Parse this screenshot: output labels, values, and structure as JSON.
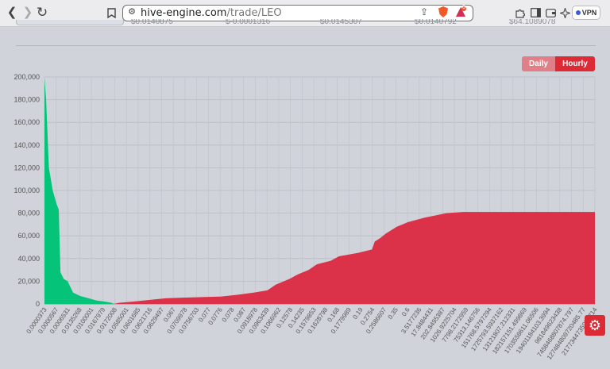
{
  "browser": {
    "url_domain": "hive-engine.com",
    "url_path": "/trade/LEO",
    "vpn_label": "VPN",
    "brave_badge": "6"
  },
  "stats": [
    "$0.0140875",
    "$-0.0001316",
    "$0.0145307",
    "$0.0140792",
    "$64.1089078"
  ],
  "buttons": {
    "daily": "Daily",
    "hourly": "Hourly"
  },
  "colors": {
    "bid": "#05c378",
    "ask": "#db3149",
    "active": "#dc2b35",
    "inactive": "#e07f87"
  },
  "chart_data": {
    "type": "area",
    "ylim": [
      0,
      200000
    ],
    "yticks": [
      "0",
      "20,000",
      "40,000",
      "60,000",
      "80,000",
      "100,000",
      "120,000",
      "140,000",
      "160,000",
      "180,000",
      "200,000"
    ],
    "x_labels": [
      "0.0000373",
      "0.0000567",
      "0.0006531",
      "0.0135268",
      "0.0100001",
      "0.0167979",
      "0.0172008",
      "0.0585001",
      "0.0601685",
      "0.0621716",
      "0.0629497",
      "0.067",
      "0.0709978",
      "0.0756703",
      "0.077",
      "0.0776",
      "0.078",
      "0.087",
      "0.0918978",
      "0.0963439",
      "0.1066962",
      "0.12578",
      "0.14235",
      "0.1579853",
      "0.1628798",
      "0.168",
      "0.1779989",
      "0.19",
      "0.2754",
      "0.2586607",
      "0.35",
      "0.6",
      "3.5177236",
      "17.8484431",
      "202.8495387",
      "1026.9225704",
      "7798.2172959",
      "75313.146756",
      "151768.5797294",
      "1725793.5937162",
      "13121807.212331",
      "182157151.499869",
      "1703558611.06506",
      "19401184103.3994",
      "981849623438",
      "7458468807874.797",
      "127484809720485.77",
      "2177344735986714"
    ],
    "series": [
      {
        "side": "bid",
        "points": [
          [
            0,
            199000
          ],
          [
            0.3,
            180000
          ],
          [
            0.8,
            120000
          ],
          [
            1.5,
            100000
          ],
          [
            2.2,
            88000
          ],
          [
            2.6,
            83000
          ],
          [
            2.9,
            28000
          ],
          [
            3.5,
            22000
          ],
          [
            4.2,
            20000
          ],
          [
            5.2,
            10000
          ],
          [
            6.5,
            7000
          ],
          [
            8.0,
            5000
          ],
          [
            9.5,
            3000
          ],
          [
            11.0,
            2000
          ],
          [
            12.2,
            1000
          ],
          [
            12.6,
            0
          ]
        ]
      },
      {
        "side": "ask",
        "points": [
          [
            12.6,
            0
          ],
          [
            13.5,
            1000
          ],
          [
            16.0,
            2000
          ],
          [
            19.0,
            3500
          ],
          [
            22.0,
            5000
          ],
          [
            25.0,
            5500
          ],
          [
            32.0,
            6500
          ],
          [
            35.0,
            8000
          ],
          [
            38.0,
            10000
          ],
          [
            40.5,
            12000
          ],
          [
            42.0,
            17000
          ],
          [
            44.5,
            22000
          ],
          [
            46.0,
            26000
          ],
          [
            48.0,
            30000
          ],
          [
            49.5,
            35000
          ],
          [
            52.0,
            38000
          ],
          [
            53.5,
            42000
          ],
          [
            57.0,
            45000
          ],
          [
            59.5,
            48000
          ],
          [
            60.0,
            55000
          ],
          [
            61.0,
            58000
          ],
          [
            62.0,
            62000
          ],
          [
            64.0,
            68000
          ],
          [
            66.0,
            72000
          ],
          [
            69.0,
            76000
          ],
          [
            71.0,
            78000
          ],
          [
            73.0,
            80000
          ],
          [
            76.0,
            81000
          ],
          [
            100.0,
            81000
          ]
        ]
      }
    ]
  }
}
